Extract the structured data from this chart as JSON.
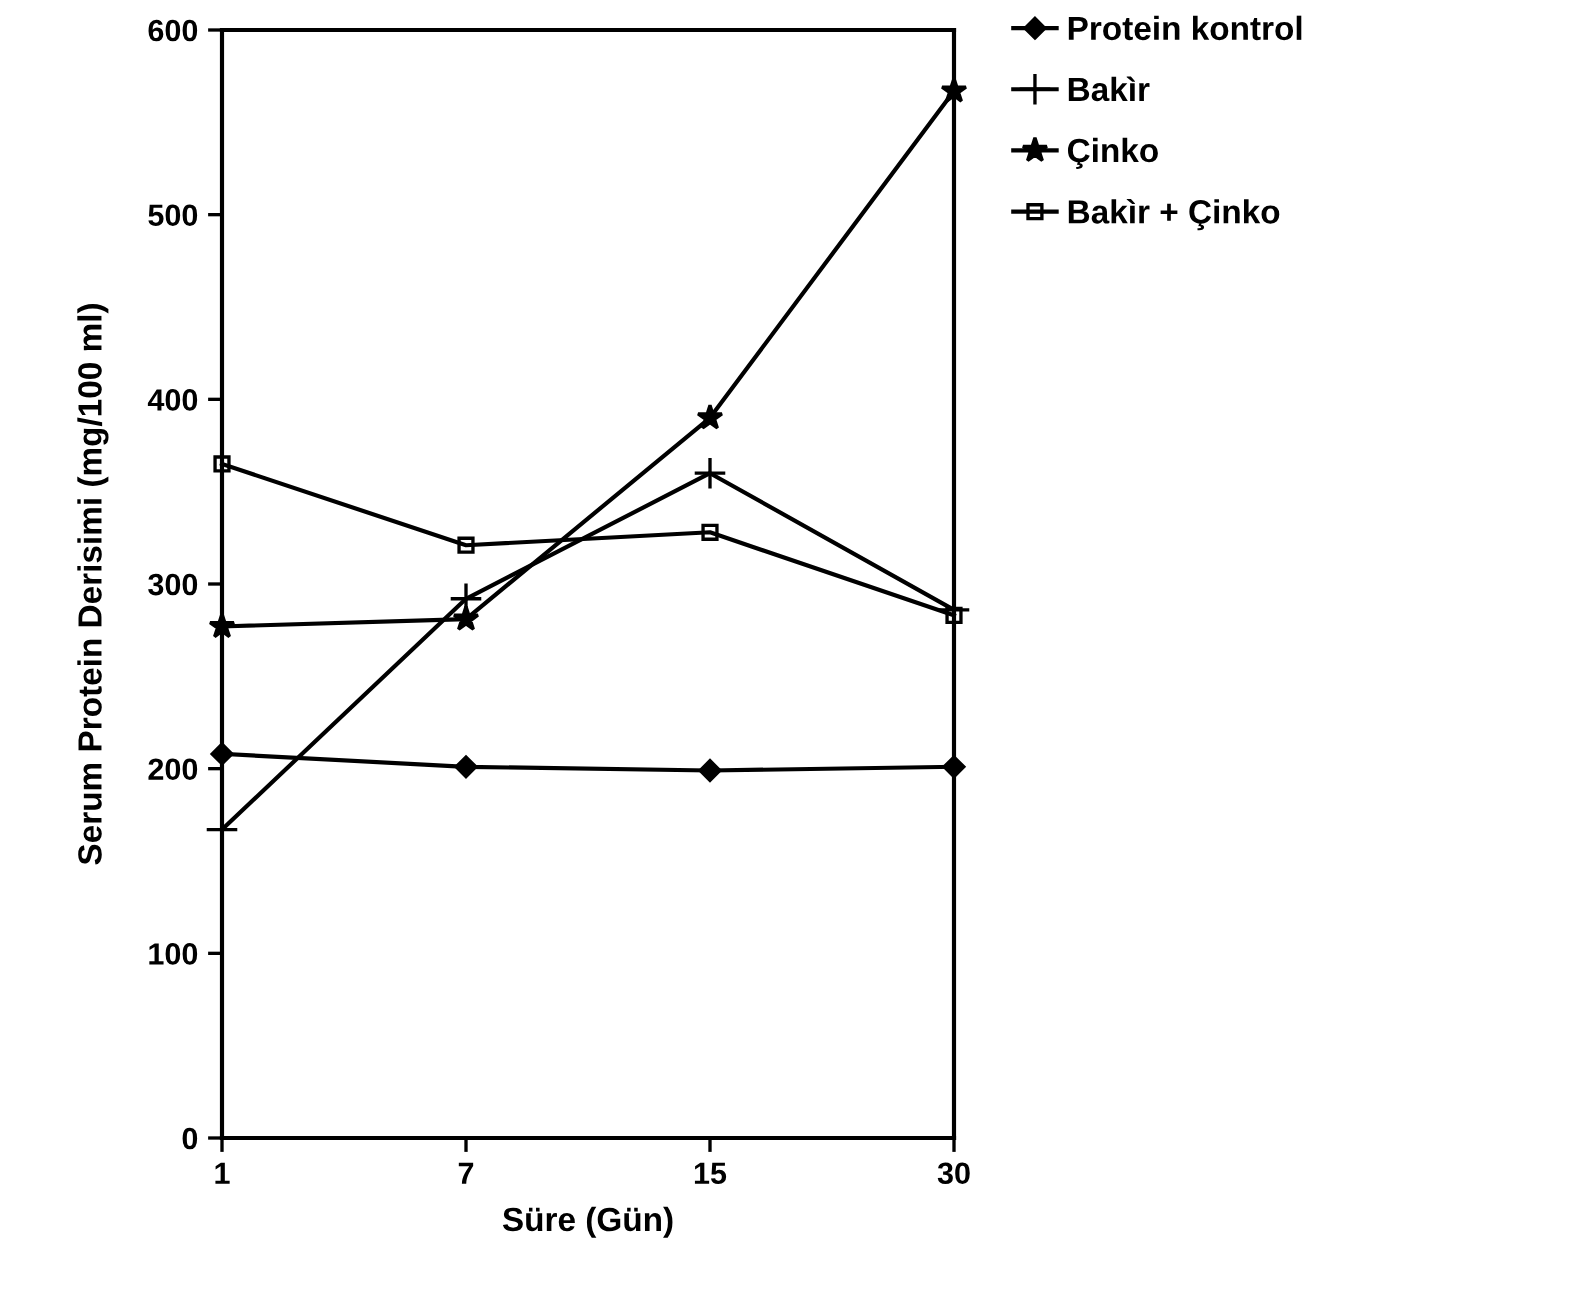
{
  "chart_data": {
    "type": "line",
    "xlabel": "Süre (Gün)",
    "ylabel": "Serum Protein Derisimi (mg/100 ml)",
    "categories": [
      "1",
      "7",
      "15",
      "30"
    ],
    "series": [
      {
        "name": "Protein kontrol",
        "color": "#000000",
        "marker": "diamond",
        "values": [
          208,
          201,
          199,
          201
        ]
      },
      {
        "name": "Bakìr",
        "color": "#000000",
        "marker": "cross",
        "values": [
          167,
          292,
          360,
          286
        ]
      },
      {
        "name": "Çinko",
        "color": "#000000",
        "marker": "star",
        "values": [
          277,
          281,
          390,
          567
        ]
      },
      {
        "name": "Bakìr + Çinko",
        "color": "#000000",
        "marker": "square",
        "values": [
          365,
          321,
          328,
          283
        ]
      }
    ],
    "ylim": [
      0,
      600
    ],
    "yticks": [
      0,
      100,
      200,
      300,
      400,
      500,
      600
    ],
    "grid": false,
    "legend": "top right",
    "line_style": "solid"
  }
}
